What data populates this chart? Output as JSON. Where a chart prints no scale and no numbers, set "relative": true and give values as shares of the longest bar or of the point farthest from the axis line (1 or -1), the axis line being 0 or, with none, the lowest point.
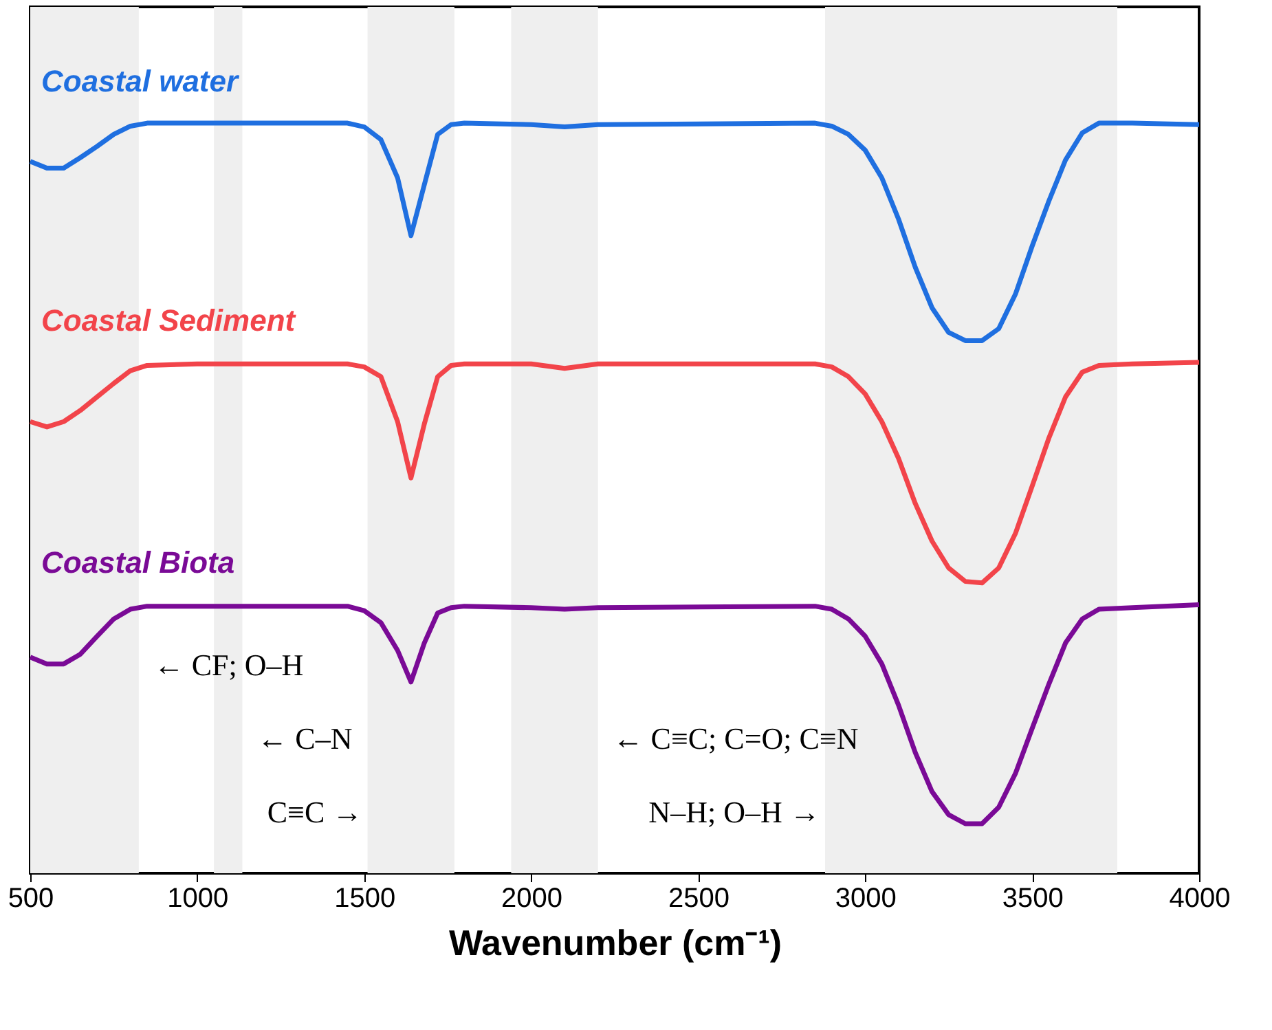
{
  "chart_data": {
    "type": "line",
    "xlabel": "Wavenumber (cm⁻¹)",
    "relative": true,
    "xlim": [
      500,
      4000
    ],
    "xticks": [
      500,
      1000,
      1500,
      2000,
      2500,
      3000,
      3500,
      4000
    ],
    "grid": false,
    "line_style": "solid",
    "marker": "none",
    "x": [
      500,
      550,
      600,
      650,
      700,
      750,
      800,
      850,
      1000,
      1450,
      1500,
      1550,
      1600,
      1640,
      1680,
      1720,
      1760,
      1800,
      2000,
      2100,
      2200,
      2850,
      2900,
      2950,
      3000,
      3050,
      3100,
      3150,
      3200,
      3250,
      3300,
      3350,
      3400,
      3450,
      3500,
      3550,
      3600,
      3650,
      3700,
      3800,
      4000
    ],
    "series": [
      {
        "name": "Coastal water",
        "color": "#1f6fe0",
        "values": [
          0.949,
          0.94,
          0.94,
          0.954,
          0.969,
          0.985,
          0.996,
          1.0,
          1.0,
          1.0,
          0.995,
          0.978,
          0.927,
          0.85,
          0.918,
          0.985,
          0.998,
          1.0,
          0.998,
          0.995,
          0.998,
          1.0,
          0.996,
          0.985,
          0.964,
          0.927,
          0.872,
          0.808,
          0.754,
          0.721,
          0.71,
          0.71,
          0.726,
          0.772,
          0.836,
          0.896,
          0.951,
          0.987,
          1.0,
          1.0,
          0.998
        ]
      },
      {
        "name": "Coastal Sediment",
        "color": "#f2444a",
        "values": [
          0.602,
          0.595,
          0.602,
          0.617,
          0.635,
          0.653,
          0.67,
          0.677,
          0.679,
          0.679,
          0.675,
          0.662,
          0.602,
          0.527,
          0.599,
          0.662,
          0.677,
          0.679,
          0.679,
          0.673,
          0.679,
          0.679,
          0.675,
          0.662,
          0.639,
          0.602,
          0.553,
          0.493,
          0.443,
          0.407,
          0.389,
          0.387,
          0.407,
          0.453,
          0.516,
          0.58,
          0.635,
          0.668,
          0.677,
          0.679,
          0.681
        ]
      },
      {
        "name": "Coastal Biota",
        "color": "#7a0a96",
        "values": [
          0.288,
          0.279,
          0.279,
          0.292,
          0.316,
          0.339,
          0.352,
          0.356,
          0.356,
          0.356,
          0.35,
          0.334,
          0.297,
          0.255,
          0.307,
          0.347,
          0.354,
          0.356,
          0.354,
          0.352,
          0.354,
          0.356,
          0.352,
          0.339,
          0.316,
          0.279,
          0.224,
          0.161,
          0.109,
          0.078,
          0.066,
          0.066,
          0.088,
          0.133,
          0.193,
          0.252,
          0.307,
          0.339,
          0.352,
          0.354,
          0.358
        ]
      }
    ],
    "bands": [
      {
        "axis": "x",
        "from": 500,
        "to": 825,
        "label": "← CF; O–H",
        "color": "#efefef"
      },
      {
        "axis": "x",
        "from": 1050,
        "to": 1135,
        "label": "← C–N",
        "color": "#efefef"
      },
      {
        "axis": "x",
        "from": 1510,
        "to": 1770,
        "label": "C≡C →",
        "color": "#efefef"
      },
      {
        "axis": "x",
        "from": 1940,
        "to": 2200,
        "label": "← C≡C; C=O; C≡N",
        "color": "#efefef"
      },
      {
        "axis": "x",
        "from": 2880,
        "to": 3755,
        "label": "N–H; O–H →",
        "color": "#efefef"
      }
    ]
  }
}
